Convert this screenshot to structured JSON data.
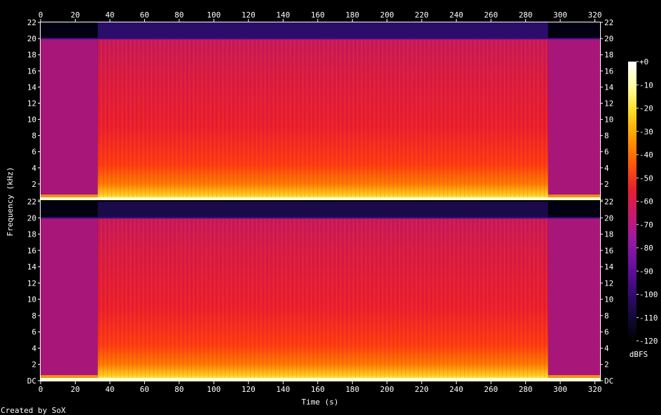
{
  "chart_data": {
    "type": "heatmap",
    "subtype": "spectrogram",
    "channels": 2,
    "xlabel": "Time (s)",
    "ylabel": "Frequency (kHz)",
    "xlim": [
      0,
      323
    ],
    "ylim": [
      0,
      22
    ],
    "x_ticks": [
      0,
      20,
      40,
      60,
      80,
      100,
      120,
      140,
      160,
      180,
      200,
      220,
      240,
      260,
      280,
      300,
      320
    ],
    "y_tick_values": [
      0,
      2,
      4,
      6,
      8,
      10,
      12,
      14,
      16,
      18,
      20,
      22
    ],
    "y_tick_labels": [
      "DC",
      "2",
      "4",
      "6",
      "8",
      "10",
      "12",
      "14",
      "16",
      "18",
      "20",
      "22"
    ],
    "colorbar": {
      "label": "dBFS",
      "range": [
        -120,
        0
      ],
      "ticks": [
        "+0",
        "-10",
        "-20",
        "-30",
        "-40",
        "-50",
        "-60",
        "-70",
        "-80",
        "-90",
        "-100",
        "-110",
        "-120"
      ],
      "palette": [
        "#000000",
        "#140a3c",
        "#3a0a7a",
        "#6a10a0",
        "#9a1aa0",
        "#c81a6a",
        "#e8202e",
        "#ff5a0a",
        "#ff9a00",
        "#ffd820",
        "#ffffa0",
        "#ffffff"
      ]
    },
    "segments": {
      "lowpass_cutoff_khz": 20,
      "loud_section_s": [
        33,
        293
      ],
      "quiet_sections_s": [
        [
          0,
          33
        ],
        [
          293,
          323
        ]
      ]
    },
    "credit": "Created by SoX"
  }
}
